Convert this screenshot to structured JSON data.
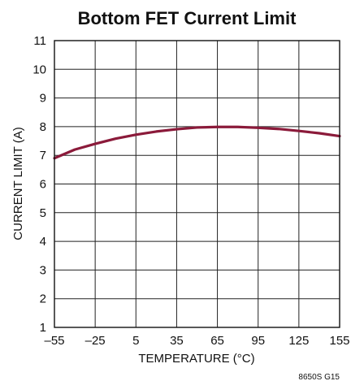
{
  "chart_data": {
    "type": "line",
    "title": "Bottom FET Current Limit",
    "xlabel": "TEMPERATURE (°C)",
    "ylabel": "CURRENT LIMIT (A)",
    "figure_id": "8650S G15",
    "xlim": [
      -55,
      155
    ],
    "ylim": [
      1,
      11
    ],
    "x_ticks": [
      -55,
      -25,
      5,
      35,
      65,
      95,
      125,
      155
    ],
    "x_tick_labels": [
      "–55",
      "–25",
      "5",
      "35",
      "65",
      "95",
      "125",
      "155"
    ],
    "y_ticks": [
      1,
      2,
      3,
      4,
      5,
      6,
      7,
      8,
      9,
      10,
      11
    ],
    "y_tick_labels": [
      "1",
      "2",
      "3",
      "4",
      "5",
      "6",
      "7",
      "8",
      "9",
      "10",
      "11"
    ],
    "grid": true,
    "series": [
      {
        "color": "#8b1a3a",
        "x": [
          -55,
          -40,
          -25,
          -10,
          5,
          20,
          35,
          50,
          65,
          80,
          95,
          110,
          125,
          140,
          155
        ],
        "y": [
          6.9,
          7.2,
          7.4,
          7.58,
          7.72,
          7.83,
          7.91,
          7.97,
          7.99,
          7.99,
          7.96,
          7.92,
          7.85,
          7.77,
          7.67
        ]
      }
    ]
  }
}
